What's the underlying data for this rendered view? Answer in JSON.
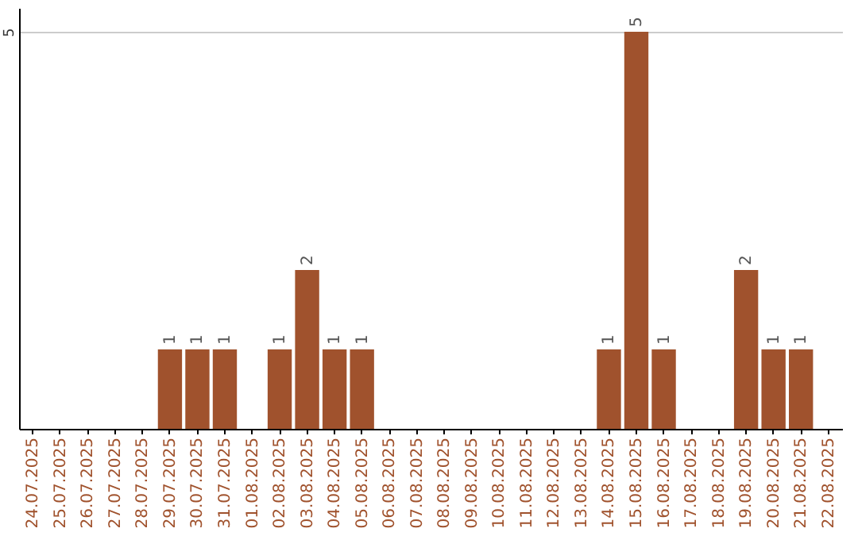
{
  "chart_data": {
    "type": "bar",
    "categories": [
      "24.07.2025",
      "25.07.2025",
      "26.07.2025",
      "27.07.2025",
      "28.07.2025",
      "29.07.2025",
      "30.07.2025",
      "31.07.2025",
      "01.08.2025",
      "02.08.2025",
      "03.08.2025",
      "04.08.2025",
      "05.08.2025",
      "06.08.2025",
      "07.08.2025",
      "08.08.2025",
      "09.08.2025",
      "10.08.2025",
      "11.08.2025",
      "12.08.2025",
      "13.08.2025",
      "14.08.2025",
      "15.08.2025",
      "16.08.2025",
      "17.08.2025",
      "18.08.2025",
      "19.08.2025",
      "20.08.2025",
      "21.08.2025",
      "22.08.2025"
    ],
    "values": [
      0,
      0,
      0,
      0,
      0,
      1,
      1,
      1,
      0,
      1,
      2,
      1,
      1,
      0,
      0,
      0,
      0,
      0,
      0,
      0,
      0,
      1,
      5,
      1,
      0,
      0,
      2,
      1,
      1,
      0
    ],
    "value_labels": [
      null,
      null,
      null,
      null,
      null,
      "1",
      "1",
      "1",
      null,
      "1",
      "2",
      "1",
      "1",
      null,
      null,
      null,
      null,
      null,
      null,
      null,
      null,
      "1",
      "5",
      "1",
      null,
      null,
      "2",
      "1",
      "1",
      null
    ],
    "color": "#a0522d",
    "ylim": [
      0,
      5.3
    ],
    "yticks": [
      5
    ],
    "grid": "y"
  }
}
